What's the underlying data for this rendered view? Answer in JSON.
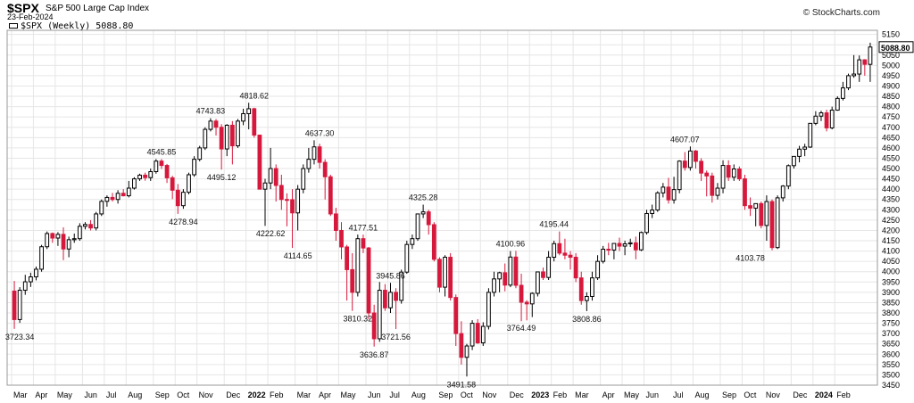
{
  "header": {
    "symbol": "$SPX",
    "name": "S&P 500 Large Cap Index",
    "date": "23-Feb-2024",
    "credit": "© StockCharts.com",
    "legend": "$SPX (Weekly) 5088.80"
  },
  "colors": {
    "up_body": "#ffffff",
    "up_border": "#000000",
    "down_body": "#d6183c",
    "down_border": "#d6183c",
    "wick": "#000000",
    "grid": "#e6e6e6",
    "last_price_bg": "#ffffff"
  },
  "chart_data": {
    "type": "candlestick",
    "grid": true,
    "ylim": [
      3450,
      5170
    ],
    "y_ticks": [
      3450,
      3500,
      3550,
      3600,
      3650,
      3700,
      3750,
      3800,
      3850,
      3900,
      3950,
      4000,
      4050,
      4100,
      4150,
      4200,
      4250,
      4300,
      4350,
      4400,
      4450,
      4500,
      4550,
      4600,
      4650,
      4700,
      4750,
      4800,
      4850,
      4900,
      4950,
      5000,
      5050,
      5100,
      5150
    ],
    "x_labels": [
      {
        "week": 0,
        "label": "Mar",
        "bold": false
      },
      {
        "week": 4,
        "label": "Apr",
        "bold": false
      },
      {
        "week": 8,
        "label": "May",
        "bold": false
      },
      {
        "week": 13,
        "label": "Jun",
        "bold": false
      },
      {
        "week": 17,
        "label": "Jul",
        "bold": false
      },
      {
        "week": 21,
        "label": "Aug",
        "bold": false
      },
      {
        "week": 26,
        "label": "Sep",
        "bold": false
      },
      {
        "week": 30,
        "label": "Oct",
        "bold": false
      },
      {
        "week": 34,
        "label": "Nov",
        "bold": false
      },
      {
        "week": 39,
        "label": "Dec",
        "bold": false
      },
      {
        "week": 43,
        "label": "2022",
        "bold": true
      },
      {
        "week": 47,
        "label": "Feb",
        "bold": false
      },
      {
        "week": 52,
        "label": "Mar",
        "bold": false
      },
      {
        "week": 56,
        "label": "Apr",
        "bold": false
      },
      {
        "week": 60,
        "label": "May",
        "bold": false
      },
      {
        "week": 65,
        "label": "Jun",
        "bold": false
      },
      {
        "week": 69,
        "label": "Jul",
        "bold": false
      },
      {
        "week": 73,
        "label": "Aug",
        "bold": false
      },
      {
        "week": 78,
        "label": "Sep",
        "bold": false
      },
      {
        "week": 82,
        "label": "Oct",
        "bold": false
      },
      {
        "week": 86,
        "label": "Nov",
        "bold": false
      },
      {
        "week": 91,
        "label": "Dec",
        "bold": false
      },
      {
        "week": 95,
        "label": "2023",
        "bold": true
      },
      {
        "week": 99,
        "label": "Feb",
        "bold": false
      },
      {
        "week": 103,
        "label": "Mar",
        "bold": false
      },
      {
        "week": 108,
        "label": "Apr",
        "bold": false
      },
      {
        "week": 112,
        "label": "May",
        "bold": false
      },
      {
        "week": 116,
        "label": "Jun",
        "bold": false
      },
      {
        "week": 121,
        "label": "Jul",
        "bold": false
      },
      {
        "week": 125,
        "label": "Aug",
        "bold": false
      },
      {
        "week": 130,
        "label": "Sep",
        "bold": false
      },
      {
        "week": 134,
        "label": "Oct",
        "bold": false
      },
      {
        "week": 138,
        "label": "Nov",
        "bold": false
      },
      {
        "week": 143,
        "label": "Dec",
        "bold": false
      },
      {
        "week": 147,
        "label": "2024",
        "bold": true
      },
      {
        "week": 151,
        "label": "Feb",
        "bold": false
      }
    ],
    "last_price": 5088.8,
    "annotations": [
      {
        "week": 1,
        "value": 3723.34,
        "text": "3723.34",
        "pos": "below"
      },
      {
        "week": 27,
        "value": 4545.85,
        "text": "4545.85",
        "pos": "above"
      },
      {
        "week": 31,
        "value": 4278.94,
        "text": "4278.94",
        "pos": "below"
      },
      {
        "week": 36,
        "value": 4743.83,
        "text": "4743.83",
        "pos": "above"
      },
      {
        "week": 38,
        "value": 4495.12,
        "text": "4495.12",
        "pos": "below"
      },
      {
        "week": 44,
        "value": 4818.62,
        "text": "4818.62",
        "pos": "above"
      },
      {
        "week": 47,
        "value": 4222.62,
        "text": "4222.62",
        "pos": "below"
      },
      {
        "week": 52,
        "value": 4114.65,
        "text": "4114.65",
        "pos": "below"
      },
      {
        "week": 56,
        "value": 4637.3,
        "text": "4637.30",
        "pos": "above"
      },
      {
        "week": 64,
        "value": 4177.51,
        "text": "4177.51",
        "pos": "above"
      },
      {
        "week": 63,
        "value": 3810.32,
        "text": "3810.32",
        "pos": "below"
      },
      {
        "week": 69,
        "value": 3945.86,
        "text": "3945.86",
        "pos": "above"
      },
      {
        "week": 66,
        "value": 3636.87,
        "text": "3636.87",
        "pos": "below"
      },
      {
        "week": 70,
        "value": 3721.56,
        "text": "3721.56",
        "pos": "below"
      },
      {
        "week": 75,
        "value": 4325.28,
        "text": "4325.28",
        "pos": "above"
      },
      {
        "week": 82,
        "value": 3491.58,
        "text": "3491.58",
        "pos": "below"
      },
      {
        "week": 91,
        "value": 4100.96,
        "text": "4100.96",
        "pos": "above"
      },
      {
        "week": 93,
        "value": 3764.49,
        "text": "3764.49",
        "pos": "below"
      },
      {
        "week": 99,
        "value": 4195.44,
        "text": "4195.44",
        "pos": "above"
      },
      {
        "week": 105,
        "value": 3808.86,
        "text": "3808.86",
        "pos": "below"
      },
      {
        "week": 123,
        "value": 4607.07,
        "text": "4607.07",
        "pos": "above"
      },
      {
        "week": 135,
        "value": 4103.78,
        "text": "4103.78",
        "pos": "below"
      }
    ],
    "candles": [
      [
        3906,
        3955,
        3723,
        3768
      ],
      [
        3768,
        3925,
        3752,
        3910
      ],
      [
        3910,
        3985,
        3888,
        3951
      ],
      [
        3951,
        3995,
        3926,
        3975
      ],
      [
        3975,
        4025,
        3958,
        4012
      ],
      [
        4012,
        4130,
        4000,
        4121
      ],
      [
        4121,
        4195,
        4110,
        4185
      ],
      [
        4185,
        4190,
        4140,
        4163
      ],
      [
        4163,
        4192,
        4125,
        4181
      ],
      [
        4181,
        4215,
        4056,
        4110
      ],
      [
        4110,
        4170,
        4070,
        4155
      ],
      [
        4155,
        4185,
        4140,
        4160
      ],
      [
        4160,
        4235,
        4150,
        4220
      ],
      [
        4220,
        4240,
        4205,
        4229
      ],
      [
        4229,
        4250,
        4200,
        4212
      ],
      [
        4212,
        4290,
        4200,
        4280
      ],
      [
        4280,
        4350,
        4270,
        4341
      ],
      [
        4341,
        4370,
        4315,
        4360
      ],
      [
        4360,
        4382,
        4340,
        4350
      ],
      [
        4350,
        4395,
        4330,
        4380
      ],
      [
        4380,
        4400,
        4365,
        4368
      ],
      [
        4368,
        4440,
        4360,
        4405
      ],
      [
        4405,
        4458,
        4398,
        4450
      ],
      [
        4450,
        4475,
        4440,
        4468
      ],
      [
        4468,
        4480,
        4441,
        4456
      ],
      [
        4456,
        4500,
        4440,
        4485
      ],
      [
        4485,
        4546,
        4475,
        4536
      ],
      [
        4536,
        4546,
        4498,
        4515
      ],
      [
        4515,
        4522,
        4430,
        4455
      ],
      [
        4455,
        4465,
        4352,
        4395
      ],
      [
        4395,
        4425,
        4280,
        4320
      ],
      [
        4320,
        4400,
        4305,
        4385
      ],
      [
        4385,
        4480,
        4375,
        4470
      ],
      [
        4470,
        4560,
        4460,
        4545
      ],
      [
        4545,
        4610,
        4535,
        4600
      ],
      [
        4600,
        4700,
        4590,
        4690
      ],
      [
        4690,
        4744,
        4680,
        4730
      ],
      [
        4730,
        4740,
        4660,
        4700
      ],
      [
        4700,
        4715,
        4495,
        4595
      ],
      [
        4595,
        4715,
        4560,
        4710
      ],
      [
        4710,
        4730,
        4520,
        4610
      ],
      [
        4610,
        4740,
        4600,
        4730
      ],
      [
        4730,
        4790,
        4710,
        4766
      ],
      [
        4766,
        4819,
        4690,
        4790
      ],
      [
        4790,
        4795,
        4650,
        4662
      ],
      [
        4662,
        4664,
        4400,
        4400
      ],
      [
        4400,
        4450,
        4222,
        4430
      ],
      [
        4430,
        4600,
        4400,
        4500
      ],
      [
        4500,
        4520,
        4340,
        4418
      ],
      [
        4418,
        4470,
        4300,
        4350
      ],
      [
        4350,
        4380,
        4220,
        4349
      ],
      [
        4349,
        4400,
        4115,
        4285
      ],
      [
        4285,
        4420,
        4200,
        4400
      ],
      [
        4400,
        4520,
        4380,
        4500
      ],
      [
        4500,
        4600,
        4480,
        4545
      ],
      [
        4545,
        4637,
        4520,
        4605
      ],
      [
        4605,
        4620,
        4500,
        4530
      ],
      [
        4530,
        4545,
        4350,
        4460
      ],
      [
        4460,
        4470,
        4270,
        4280
      ],
      [
        4280,
        4310,
        4150,
        4200
      ],
      [
        4200,
        4240,
        4060,
        4120
      ],
      [
        4120,
        4130,
        3860,
        4010
      ],
      [
        4010,
        4090,
        3810,
        3900
      ],
      [
        3900,
        4180,
        3880,
        4160
      ],
      [
        4160,
        4180,
        4090,
        4115
      ],
      [
        4115,
        4120,
        3770,
        3800
      ],
      [
        3800,
        3840,
        3637,
        3675
      ],
      [
        3675,
        3950,
        3660,
        3910
      ],
      [
        3910,
        3940,
        3810,
        3825
      ],
      [
        3825,
        3946,
        3800,
        3900
      ],
      [
        3900,
        3920,
        3722,
        3861
      ],
      [
        3861,
        4010,
        3845,
        3998
      ],
      [
        3998,
        4150,
        3990,
        4132
      ],
      [
        4132,
        4180,
        4110,
        4160
      ],
      [
        4160,
        4280,
        4150,
        4280
      ],
      [
        4280,
        4325,
        4260,
        4290
      ],
      [
        4290,
        4300,
        4180,
        4228
      ],
      [
        4228,
        4240,
        4050,
        4060
      ],
      [
        4060,
        4070,
        3900,
        3925
      ],
      [
        3925,
        4080,
        3880,
        4070
      ],
      [
        4070,
        4090,
        3860,
        3875
      ],
      [
        3875,
        3890,
        3640,
        3700
      ],
      [
        3700,
        3760,
        3550,
        3585
      ],
      [
        3585,
        3650,
        3492,
        3640
      ],
      [
        3640,
        3765,
        3620,
        3750
      ],
      [
        3750,
        3770,
        3650,
        3655
      ],
      [
        3655,
        3755,
        3640,
        3735
      ],
      [
        3735,
        3920,
        3720,
        3900
      ],
      [
        3900,
        4000,
        3880,
        3965
      ],
      [
        3965,
        4000,
        3900,
        3995
      ],
      [
        3995,
        4040,
        3905,
        3935
      ],
      [
        3935,
        4100,
        3925,
        4071
      ],
      [
        4071,
        4101,
        3920,
        3934
      ],
      [
        3934,
        3990,
        3760,
        3852
      ],
      [
        3852,
        3862,
        3764,
        3844
      ],
      [
        3844,
        3900,
        3780,
        3895
      ],
      [
        3895,
        4000,
        3880,
        3999
      ],
      [
        3999,
        4020,
        3960,
        3972
      ],
      [
        3972,
        4100,
        3960,
        4070
      ],
      [
        4070,
        4150,
        4050,
        4136
      ],
      [
        4136,
        4195,
        4080,
        4090
      ],
      [
        4090,
        4160,
        4060,
        4080
      ],
      [
        4080,
        4100,
        4010,
        4070
      ],
      [
        4070,
        4090,
        3950,
        3970
      ],
      [
        3970,
        4000,
        3840,
        3860
      ],
      [
        3860,
        3900,
        3809,
        3880
      ],
      [
        3880,
        4000,
        3860,
        3970
      ],
      [
        3970,
        4080,
        3960,
        4050
      ],
      [
        4050,
        4125,
        4040,
        4109
      ],
      [
        4109,
        4140,
        4080,
        4105
      ],
      [
        4105,
        4130,
        4060,
        4137
      ],
      [
        4137,
        4165,
        4100,
        4124
      ],
      [
        4124,
        4150,
        4080,
        4135
      ],
      [
        4135,
        4160,
        4120,
        4140
      ],
      [
        4140,
        4170,
        4060,
        4106
      ],
      [
        4106,
        4195,
        4100,
        4190
      ],
      [
        4190,
        4300,
        4180,
        4282
      ],
      [
        4282,
        4325,
        4260,
        4299
      ],
      [
        4299,
        4390,
        4290,
        4382
      ],
      [
        4382,
        4430,
        4360,
        4410
      ],
      [
        4410,
        4455,
        4330,
        4348
      ],
      [
        4348,
        4460,
        4330,
        4398
      ],
      [
        4398,
        4540,
        4380,
        4536
      ],
      [
        4536,
        4580,
        4490,
        4505
      ],
      [
        4505,
        4607,
        4490,
        4585
      ],
      [
        4585,
        4590,
        4500,
        4535
      ],
      [
        4535,
        4550,
        4440,
        4478
      ],
      [
        4478,
        4490,
        4365,
        4464
      ],
      [
        4464,
        4480,
        4335,
        4370
      ],
      [
        4370,
        4430,
        4350,
        4405
      ],
      [
        4405,
        4540,
        4380,
        4515
      ],
      [
        4515,
        4540,
        4440,
        4458
      ],
      [
        4458,
        4520,
        4440,
        4498
      ],
      [
        4498,
        4510,
        4440,
        4450
      ],
      [
        4450,
        4470,
        4300,
        4320
      ],
      [
        4320,
        4360,
        4270,
        4308
      ],
      [
        4308,
        4330,
        4220,
        4330
      ],
      [
        4330,
        4340,
        4210,
        4224
      ],
      [
        4224,
        4370,
        4150,
        4340
      ],
      [
        4340,
        4350,
        4104,
        4117
      ],
      [
        4117,
        4370,
        4110,
        4358
      ],
      [
        4358,
        4420,
        4340,
        4415
      ],
      [
        4415,
        4520,
        4400,
        4514
      ],
      [
        4514,
        4560,
        4500,
        4559
      ],
      [
        4559,
        4610,
        4530,
        4594
      ],
      [
        4594,
        4620,
        4560,
        4604
      ],
      [
        4604,
        4720,
        4600,
        4719
      ],
      [
        4719,
        4778,
        4710,
        4754
      ],
      [
        4754,
        4780,
        4730,
        4770
      ],
      [
        4770,
        4785,
        4680,
        4697
      ],
      [
        4697,
        4800,
        4690,
        4783
      ],
      [
        4783,
        4850,
        4780,
        4840
      ],
      [
        4840,
        4920,
        4830,
        4891
      ],
      [
        4891,
        4960,
        4880,
        4950
      ],
      [
        4950,
        5050,
        4940,
        4958
      ],
      [
        4958,
        5048,
        4920,
        5027
      ],
      [
        5027,
        5030,
        4950,
        5005
      ],
      [
        5005,
        5110,
        4920,
        5089
      ]
    ]
  }
}
